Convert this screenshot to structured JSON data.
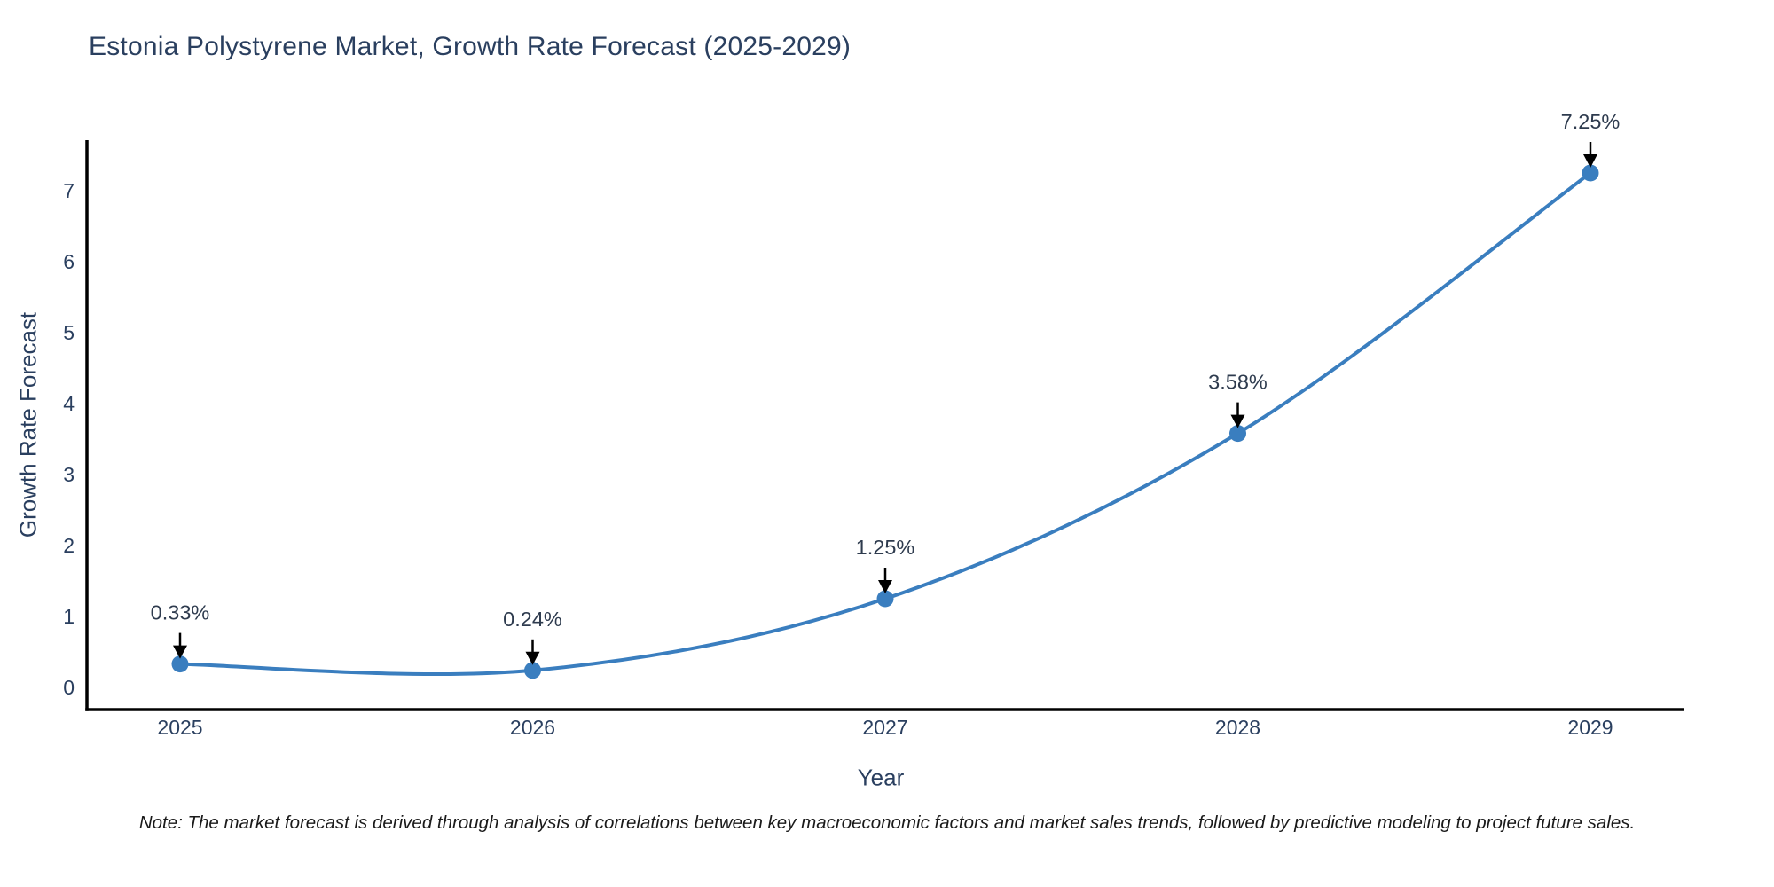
{
  "chart_data": {
    "type": "line",
    "title": "Estonia Polystyrene Market, Growth Rate Forecast (2025-2029)",
    "xlabel": "Year",
    "ylabel": "Growth Rate Forecast",
    "categories": [
      "2025",
      "2026",
      "2027",
      "2028",
      "2029"
    ],
    "values": [
      0.33,
      0.24,
      1.25,
      3.58,
      7.25
    ],
    "point_labels": [
      "0.33%",
      "0.24%",
      "1.25%",
      "3.58%",
      "7.25%"
    ],
    "y_ticks": [
      0,
      1,
      2,
      3,
      4,
      5,
      6,
      7
    ],
    "ylim": [
      -0.3,
      7.7
    ],
    "grid": false,
    "legend": "none",
    "line_color": "#3a7ebf",
    "marker_color": "#3a7ebf",
    "axis_color": "#000000",
    "arrow_color": "#000000",
    "text_color": "#2a3f5f"
  },
  "note": "Note: The market forecast is derived through analysis of correlations between key macroeconomic factors and market sales trends, followed by predictive modeling to project future sales."
}
